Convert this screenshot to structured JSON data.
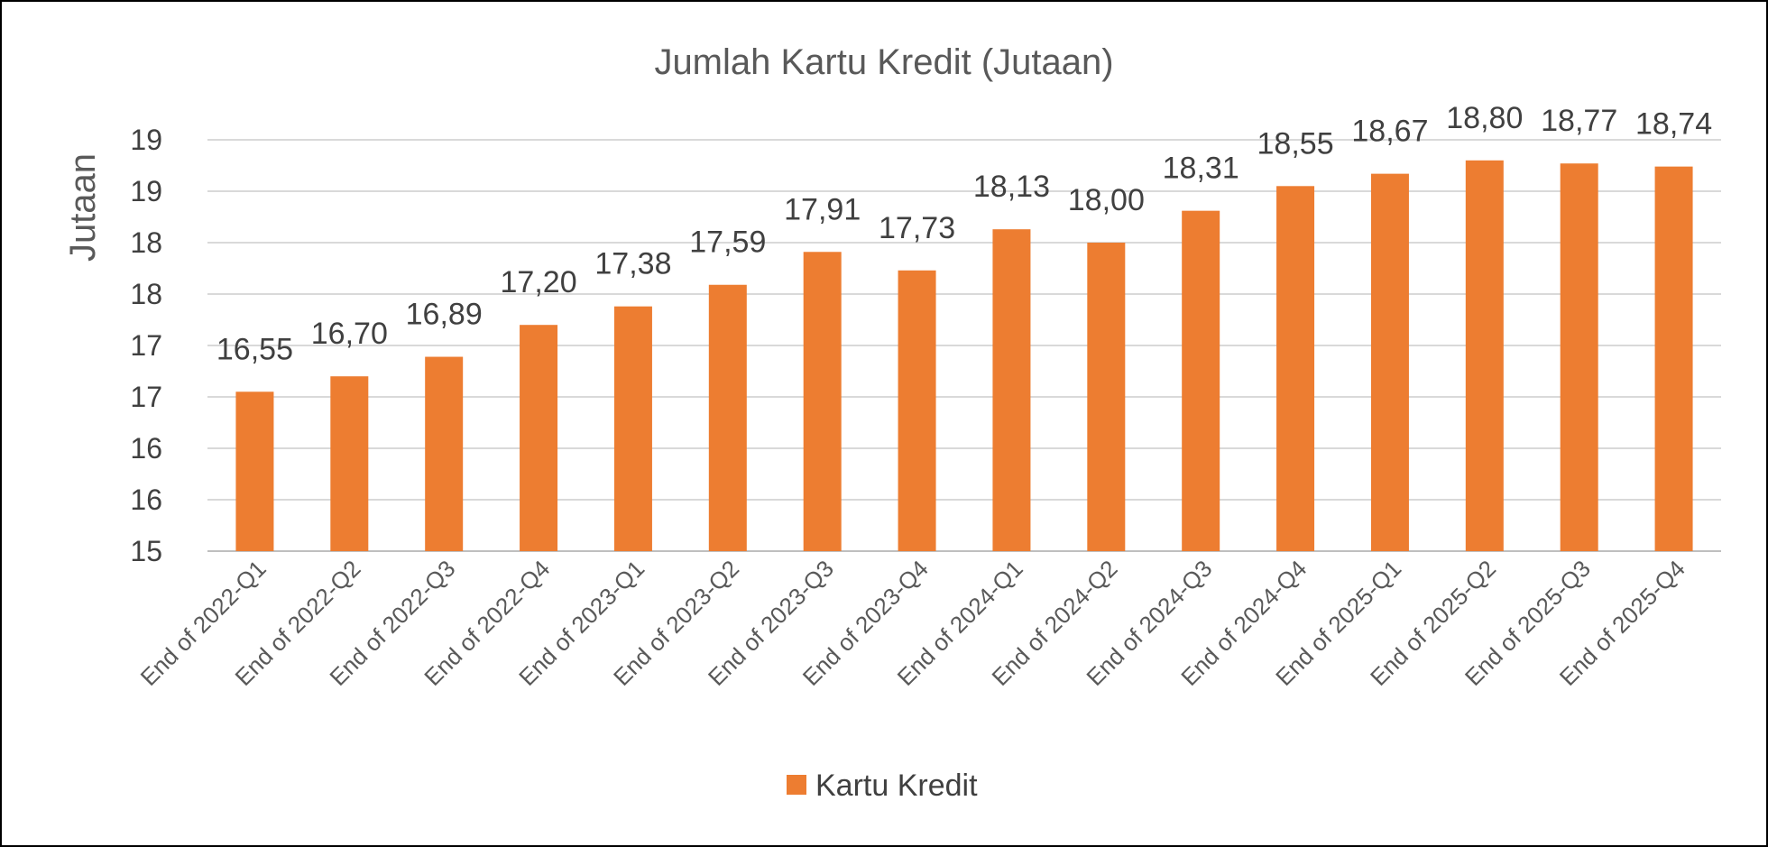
{
  "chart_data": {
    "type": "bar",
    "title": "Jumlah Kartu Kredit (Jutaan)",
    "ylabel": "Jutaan",
    "xlabel": "",
    "ylim": [
      15,
      19
    ],
    "y_tick_labels": [
      "15",
      "16",
      "16",
      "17",
      "17",
      "18",
      "18",
      "19",
      "19"
    ],
    "grid": true,
    "legend_position": "bottom",
    "color": "#ED7D31",
    "categories": [
      "End of 2022-Q1",
      "End of 2022-Q2",
      "End of 2022-Q3",
      "End of 2022-Q4",
      "End of 2023-Q1",
      "End of 2023-Q2",
      "End of 2023-Q3",
      "End of 2023-Q4",
      "End of 2024-Q1",
      "End of 2024-Q2",
      "End of 2024-Q3",
      "End of 2024-Q4",
      "End of 2025-Q1",
      "End of 2025-Q2",
      "End of 2025-Q3",
      "End of 2025-Q4"
    ],
    "series": [
      {
        "name": "Kartu Kredit",
        "values": [
          16.55,
          16.7,
          16.89,
          17.2,
          17.38,
          17.59,
          17.91,
          17.73,
          18.13,
          18.0,
          18.31,
          18.55,
          18.67,
          18.8,
          18.77,
          18.74
        ],
        "data_labels": [
          "16,55",
          "16,70",
          "16,89",
          "17,20",
          "17,38",
          "17,59",
          "17,91",
          "17,73",
          "18,13",
          "18,00",
          "18,31",
          "18,55",
          "18,67",
          "18,80",
          "18,77",
          "18,74"
        ]
      }
    ]
  }
}
